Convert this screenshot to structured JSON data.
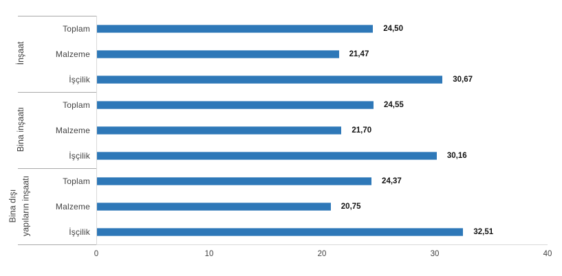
{
  "chart_data": {
    "type": "bar",
    "orientation": "horizontal",
    "title": "",
    "xlabel": "",
    "ylabel": "",
    "xlim": [
      0,
      40
    ],
    "x_ticks": [
      "0",
      "10",
      "20",
      "30",
      "40"
    ],
    "x_tick_values": [
      0,
      10,
      20,
      30,
      40
    ],
    "grid": false,
    "legend": false,
    "groups": [
      {
        "label": "İnşaat",
        "label_display": "İnşaat",
        "categories": [
          "Toplam",
          "Malzeme",
          "İşçilik"
        ],
        "values": [
          24.5,
          21.47,
          30.67
        ]
      },
      {
        "label": "Bina inşaatı",
        "label_display": "Bina inşaatı",
        "categories": [
          "Toplam",
          "Malzeme",
          "İşçilik"
        ],
        "values": [
          24.55,
          21.7,
          30.16
        ]
      },
      {
        "label": "Bina dışı yapıların inşaatı",
        "label_display": "Bina dışı\nyapıların inşaatı",
        "categories": [
          "Toplam",
          "Malzeme",
          "İşçilik"
        ],
        "values": [
          24.37,
          20.75,
          32.51
        ]
      }
    ],
    "rows": [
      {
        "group": "İnşaat",
        "category": "Toplam",
        "value": 24.5,
        "label": "24,50"
      },
      {
        "group": "İnşaat",
        "category": "Malzeme",
        "value": 21.47,
        "label": "21,47"
      },
      {
        "group": "İnşaat",
        "category": "İşçilik",
        "value": 30.67,
        "label": "30,67"
      },
      {
        "group": "Bina inşaatı",
        "category": "Toplam",
        "value": 24.55,
        "label": "24,55"
      },
      {
        "group": "Bina inşaatı",
        "category": "Malzeme",
        "value": 21.7,
        "label": "21,70"
      },
      {
        "group": "Bina inşaatı",
        "category": "İşçilik",
        "value": 30.16,
        "label": "30,16"
      },
      {
        "group": "Bina dışı yapıların inşaatı",
        "category": "Toplam",
        "value": 24.37,
        "label": "24,37"
      },
      {
        "group": "Bina dışı yapıların inşaatı",
        "category": "Malzeme",
        "value": 20.75,
        "label": "20,75"
      },
      {
        "group": "Bina dışı yapıların inşaatı",
        "category": "İşçilik",
        "value": 32.51,
        "label": "32,51"
      }
    ],
    "colors": {
      "bar": "#2e78b8",
      "axis_line": "#d9d9d9",
      "separator_line": "#a8a8a8",
      "label_text": "#404040",
      "value_text": "#111111"
    }
  }
}
